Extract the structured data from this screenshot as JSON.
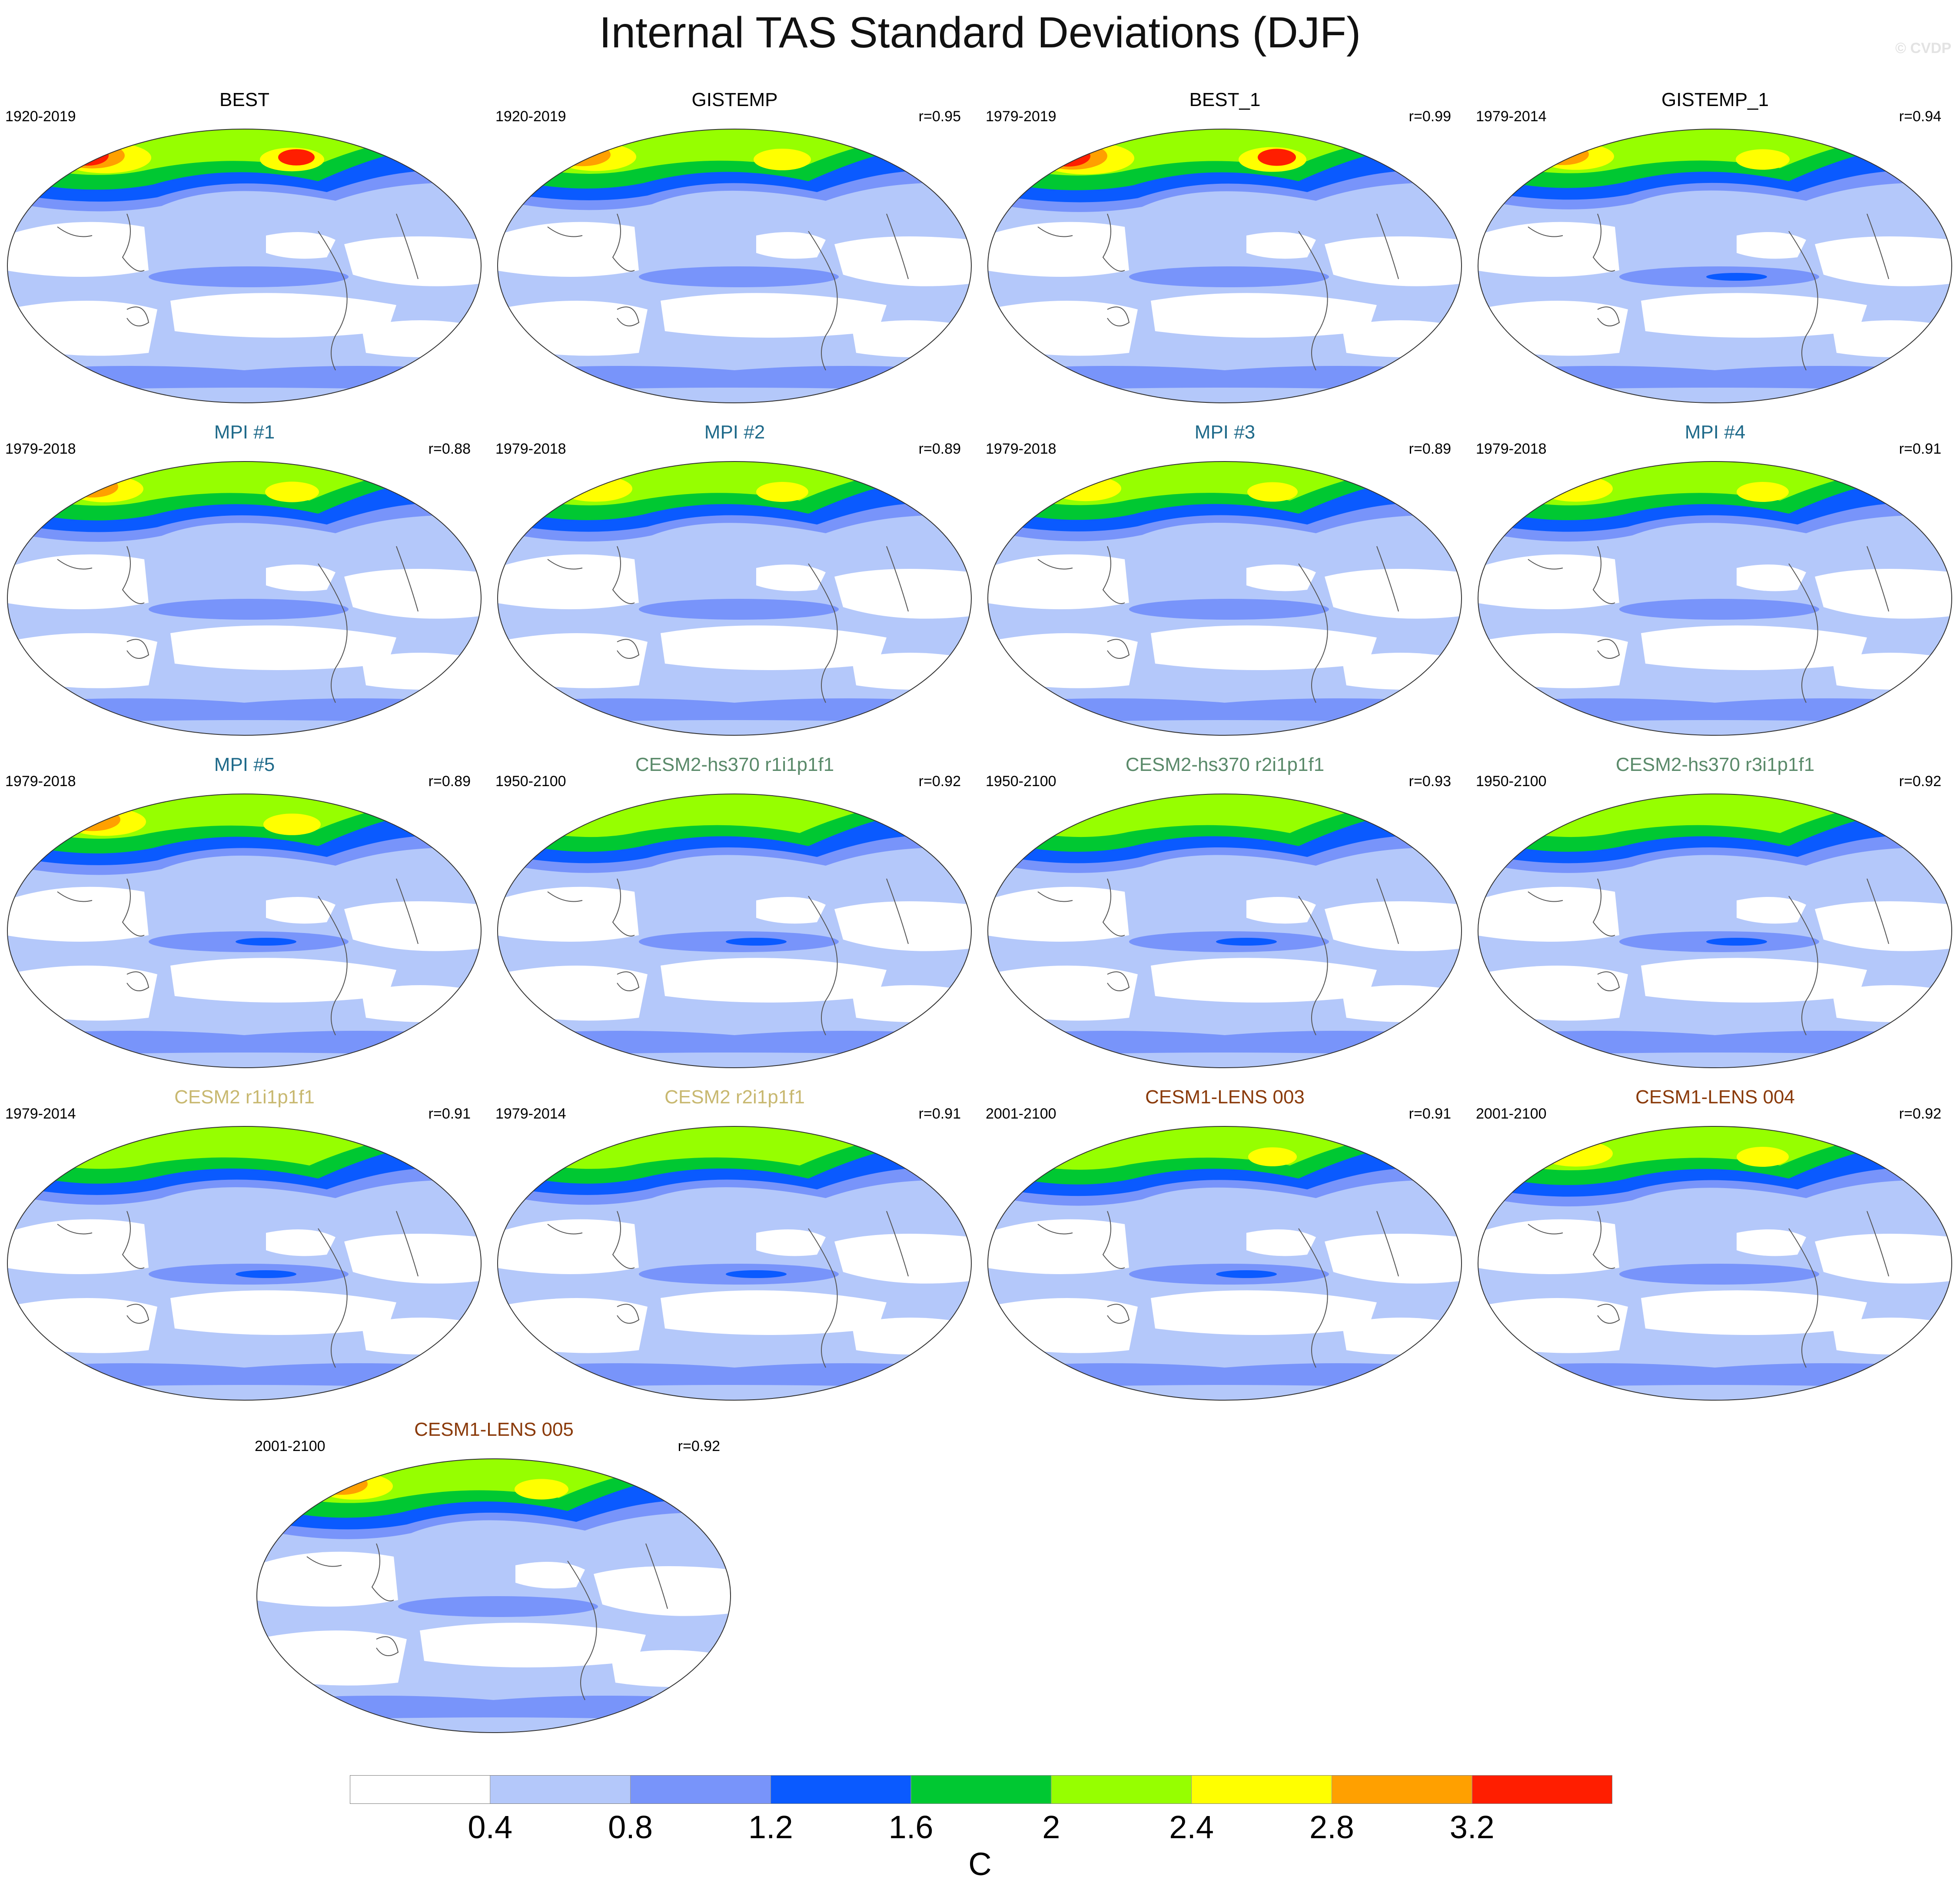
{
  "title": "Internal TAS Standard Deviations (DJF)",
  "watermark": "© CVDP",
  "colorbar": {
    "unit": "C",
    "labels": [
      "0.4",
      "0.8",
      "1.2",
      "1.6",
      "2",
      "2.4",
      "2.8",
      "3.2"
    ],
    "colors": [
      "#ffffff",
      "#b4c8fa",
      "#7894fa",
      "#0a5aff",
      "#00c832",
      "#96ff00",
      "#ffff00",
      "#ffa000",
      "#ff1e00"
    ]
  },
  "panels": [
    {
      "title": "BEST",
      "period": "1920-2019",
      "corr": "",
      "color": "#000000",
      "warm": 2.2,
      "highlat": 5,
      "tropic": 2
    },
    {
      "title": "GISTEMP",
      "period": "1920-2019",
      "corr": "r=0.95",
      "color": "#000000",
      "warm": 1.8,
      "highlat": 4,
      "tropic": 2
    },
    {
      "title": "BEST_1",
      "period": "1979-2019",
      "corr": "r=0.99",
      "color": "#000000",
      "warm": 2.4,
      "highlat": 5,
      "tropic": 2
    },
    {
      "title": "GISTEMP_1",
      "period": "1979-2014",
      "corr": "r=0.94",
      "color": "#000000",
      "warm": 1.6,
      "highlat": 4,
      "tropic": 3
    },
    {
      "title": "MPI #1",
      "period": "1979-2018",
      "corr": "r=0.88",
      "color": "#1f6a8a",
      "warm": 1.6,
      "highlat": 4,
      "tropic": 2
    },
    {
      "title": "MPI #2",
      "period": "1979-2018",
      "corr": "r=0.89",
      "color": "#1f6a8a",
      "warm": 1.5,
      "highlat": 4,
      "tropic": 2
    },
    {
      "title": "MPI #3",
      "period": "1979-2018",
      "corr": "r=0.89",
      "color": "#1f6a8a",
      "warm": 1.4,
      "highlat": 4,
      "tropic": 2
    },
    {
      "title": "MPI #4",
      "period": "1979-2018",
      "corr": "r=0.91",
      "color": "#1f6a8a",
      "warm": 1.5,
      "highlat": 4,
      "tropic": 2
    },
    {
      "title": "MPI #5",
      "period": "1979-2018",
      "corr": "r=0.89",
      "color": "#1f6a8a",
      "warm": 1.8,
      "highlat": 4,
      "tropic": 3
    },
    {
      "title": "CESM2-hs370 r1i1p1f1",
      "period": "1950-2100",
      "corr": "r=0.92",
      "color": "#5a8a6a",
      "warm": 1.2,
      "highlat": 4,
      "tropic": 3
    },
    {
      "title": "CESM2-hs370 r2i1p1f1",
      "period": "1950-2100",
      "corr": "r=0.93",
      "color": "#5a8a6a",
      "warm": 1.2,
      "highlat": 4,
      "tropic": 3
    },
    {
      "title": "CESM2-hs370 r3i1p1f1",
      "period": "1950-2100",
      "corr": "r=0.92",
      "color": "#5a8a6a",
      "warm": 1.2,
      "highlat": 4,
      "tropic": 3
    },
    {
      "title": "CESM2 r1i1p1f1",
      "period": "1979-2014",
      "corr": "r=0.91",
      "color": "#c8b870",
      "warm": 1.0,
      "highlat": 3,
      "tropic": 3
    },
    {
      "title": "CESM2 r2i1p1f1",
      "period": "1979-2014",
      "corr": "r=0.91",
      "color": "#c8b870",
      "warm": 1.0,
      "highlat": 3,
      "tropic": 3
    },
    {
      "title": "CESM1-LENS 003",
      "period": "2001-2100",
      "corr": "r=0.91",
      "color": "#8a3a0a",
      "warm": 1.3,
      "highlat": 4,
      "tropic": 3
    },
    {
      "title": "CESM1-LENS 004",
      "period": "2001-2100",
      "corr": "r=0.92",
      "color": "#8a3a0a",
      "warm": 1.5,
      "highlat": 4,
      "tropic": 2
    },
    {
      "title": "CESM1-LENS 005",
      "period": "2001-2100",
      "corr": "r=0.92",
      "color": "#8a3a0a",
      "warm": 1.6,
      "highlat": 4,
      "tropic": 2
    }
  ]
}
